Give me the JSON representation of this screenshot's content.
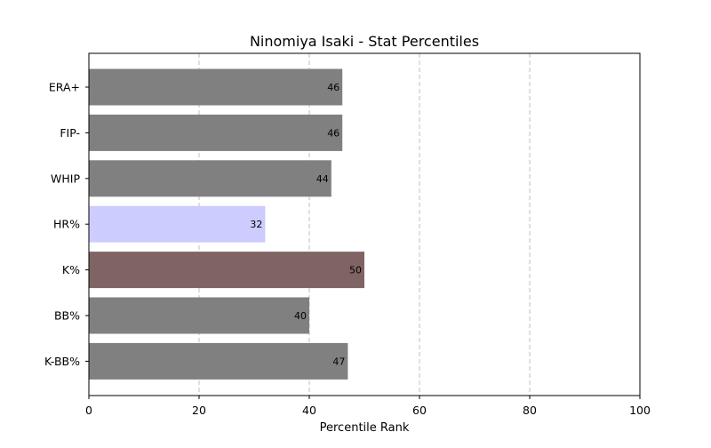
{
  "chart_data": {
    "type": "bar",
    "orientation": "horizontal",
    "title": "Ninomiya Isaki - Stat Percentiles",
    "xlabel": "Percentile Rank",
    "ylabel": "",
    "xlim": [
      0,
      100
    ],
    "x_ticks": [
      0,
      20,
      40,
      60,
      80,
      100
    ],
    "grid": "vertical dashed",
    "legend": "none",
    "categories": [
      "ERA+",
      "FIP-",
      "WHIP",
      "HR%",
      "K%",
      "BB%",
      "K-BB%"
    ],
    "values": [
      46,
      46,
      44,
      32,
      50,
      40,
      47
    ],
    "bar_colors": [
      "#808080",
      "#808080",
      "#808080",
      "#ccccff",
      "#806464",
      "#808080",
      "#808080"
    ]
  }
}
